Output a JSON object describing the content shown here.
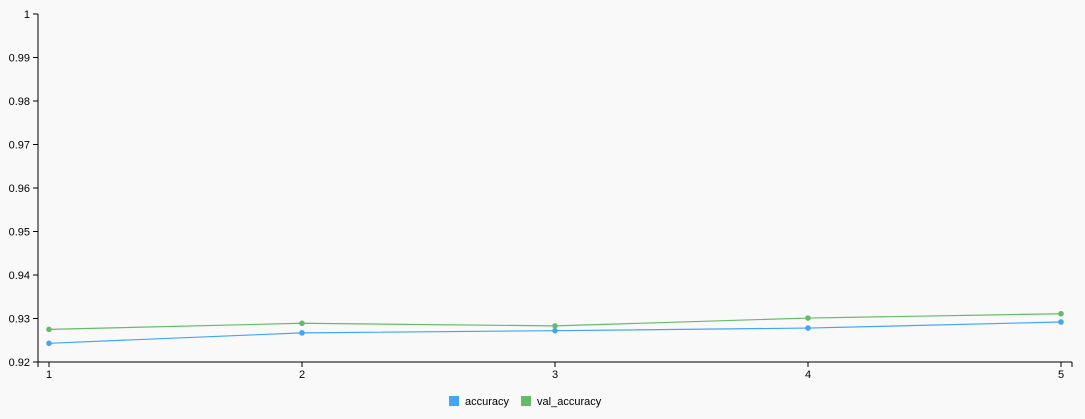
{
  "chart_data": {
    "type": "line",
    "x": [
      1,
      2,
      3,
      4,
      5
    ],
    "xticks": [
      "1",
      "2",
      "3",
      "4",
      "5"
    ],
    "yticks": [
      "0.92",
      "0.93",
      "0.94",
      "0.95",
      "0.96",
      "0.97",
      "0.98",
      "0.99",
      "1"
    ],
    "ylim": [
      0.92,
      1
    ],
    "grid": false,
    "legend": "bottom",
    "series": [
      {
        "name": "accuracy",
        "color": "#42a5f5",
        "values": [
          0.9243,
          0.9267,
          0.9272,
          0.9278,
          0.9292
        ]
      },
      {
        "name": "val_accuracy",
        "color": "#66bb6a",
        "values": [
          0.9275,
          0.9289,
          0.9283,
          0.9301,
          0.9311
        ]
      }
    ]
  }
}
